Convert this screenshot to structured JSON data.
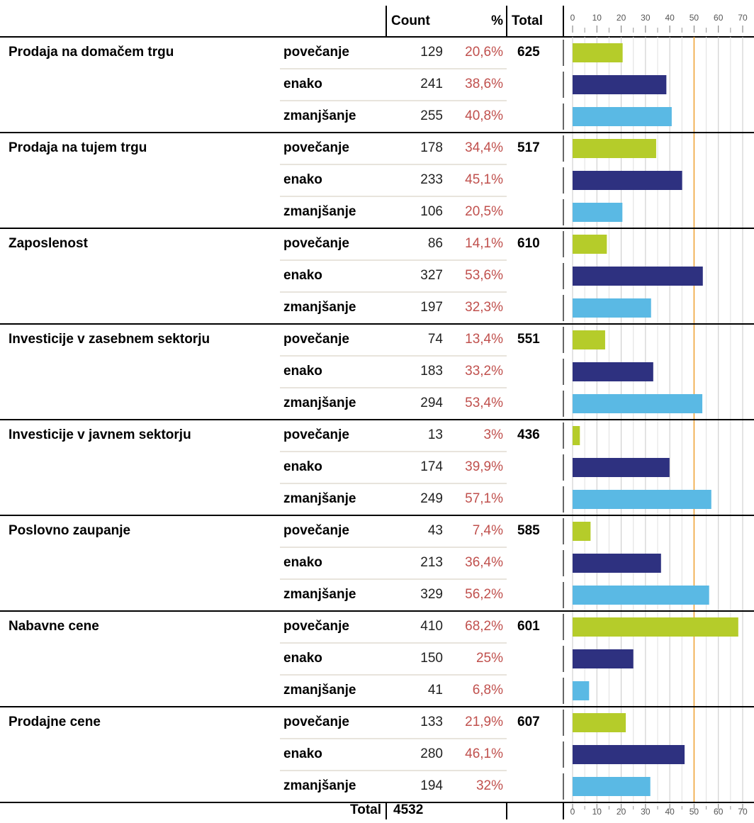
{
  "header": {
    "count": "Count",
    "pct": "%",
    "total": "Total"
  },
  "axis": {
    "xlim": [
      0,
      70
    ],
    "xticks": [
      0,
      10,
      20,
      30,
      40,
      50,
      60,
      70
    ],
    "minor_xticks": [
      5,
      15,
      25,
      35,
      45,
      55,
      65,
      75
    ],
    "reference_line": 50,
    "reference_color": "#f0a030"
  },
  "colors": [
    "#b5cc2a",
    "#2e3180",
    "#5ab9e4"
  ],
  "groups": [
    {
      "label": "Prodaja na domačem trgu",
      "total": 625,
      "rows": [
        {
          "label": "povečanje",
          "count": 129,
          "pct": 20.6,
          "pct_label": "20,6%"
        },
        {
          "label": "enako",
          "count": 241,
          "pct": 38.6,
          "pct_label": "38,6%"
        },
        {
          "label": "zmanjšanje",
          "count": 255,
          "pct": 40.8,
          "pct_label": "40,8%"
        }
      ]
    },
    {
      "label": "Prodaja na tujem trgu",
      "total": 517,
      "rows": [
        {
          "label": "povečanje",
          "count": 178,
          "pct": 34.4,
          "pct_label": "34,4%"
        },
        {
          "label": "enako",
          "count": 233,
          "pct": 45.1,
          "pct_label": "45,1%"
        },
        {
          "label": "zmanjšanje",
          "count": 106,
          "pct": 20.5,
          "pct_label": "20,5%"
        }
      ]
    },
    {
      "label": "Zaposlenost",
      "total": 610,
      "rows": [
        {
          "label": "povečanje",
          "count": 86,
          "pct": 14.1,
          "pct_label": "14,1%"
        },
        {
          "label": "enako",
          "count": 327,
          "pct": 53.6,
          "pct_label": "53,6%"
        },
        {
          "label": "zmanjšanje",
          "count": 197,
          "pct": 32.3,
          "pct_label": "32,3%"
        }
      ]
    },
    {
      "label": "Investicije v zasebnem sektorju",
      "total": 551,
      "rows": [
        {
          "label": "povečanje",
          "count": 74,
          "pct": 13.4,
          "pct_label": "13,4%"
        },
        {
          "label": "enako",
          "count": 183,
          "pct": 33.2,
          "pct_label": "33,2%"
        },
        {
          "label": "zmanjšanje",
          "count": 294,
          "pct": 53.4,
          "pct_label": "53,4%"
        }
      ]
    },
    {
      "label": "Investicije v javnem sektorju",
      "total": 436,
      "rows": [
        {
          "label": "povečanje",
          "count": 13,
          "pct": 3,
          "pct_label": "3%"
        },
        {
          "label": "enako",
          "count": 174,
          "pct": 39.9,
          "pct_label": "39,9%"
        },
        {
          "label": "zmanjšanje",
          "count": 249,
          "pct": 57.1,
          "pct_label": "57,1%"
        }
      ]
    },
    {
      "label": "Poslovno zaupanje",
      "total": 585,
      "rows": [
        {
          "label": "povečanje",
          "count": 43,
          "pct": 7.4,
          "pct_label": "7,4%"
        },
        {
          "label": "enako",
          "count": 213,
          "pct": 36.4,
          "pct_label": "36,4%"
        },
        {
          "label": "zmanjšanje",
          "count": 329,
          "pct": 56.2,
          "pct_label": "56,2%"
        }
      ]
    },
    {
      "label": "Nabavne cene",
      "total": 601,
      "rows": [
        {
          "label": "povečanje",
          "count": 410,
          "pct": 68.2,
          "pct_label": "68,2%"
        },
        {
          "label": "enako",
          "count": 150,
          "pct": 25,
          "pct_label": "25%"
        },
        {
          "label": "zmanjšanje",
          "count": 41,
          "pct": 6.8,
          "pct_label": "6,8%"
        }
      ]
    },
    {
      "label": "Prodajne cene",
      "total": 607,
      "rows": [
        {
          "label": "povečanje",
          "count": 133,
          "pct": 21.9,
          "pct_label": "21,9%"
        },
        {
          "label": "enako",
          "count": 280,
          "pct": 46.1,
          "pct_label": "46,1%"
        },
        {
          "label": "zmanjšanje",
          "count": 194,
          "pct": 32,
          "pct_label": "32%"
        }
      ]
    }
  ],
  "footer": {
    "label": "Total",
    "count": 4532
  }
}
